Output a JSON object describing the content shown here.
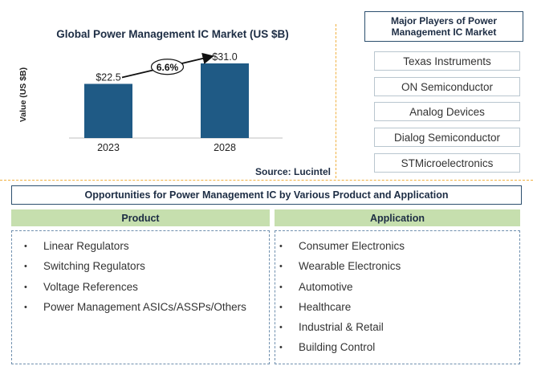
{
  "chart_data": {
    "type": "bar",
    "title": "Global Power Management IC Market (US $B)",
    "ylabel": "Value (US $B)",
    "xlabel": "",
    "categories": [
      "2023",
      "2028"
    ],
    "values": [
      22.5,
      31.0
    ],
    "value_labels": [
      "$22.5",
      "$31.0"
    ],
    "annotation": "6.6%",
    "ylim": [
      0,
      40
    ],
    "grid": false,
    "bar_color": "#1f5a85"
  },
  "source": "Source: Lucintel",
  "players": {
    "title": "Major Players of Power Management IC Market",
    "items": [
      "Texas Instruments",
      "ON Semiconductor",
      "Analog Devices",
      "Dialog Semiconductor",
      "STMicroelectronics"
    ]
  },
  "opportunities": {
    "title": "Opportunities for Power Management IC by Various Product and Application",
    "product": {
      "title": "Product",
      "items": [
        "Linear Regulators",
        "Switching Regulators",
        "Voltage References",
        "Power Management ASICs/ASSPs/Others"
      ]
    },
    "application": {
      "title": "Application",
      "items": [
        "Consumer Electronics",
        "Wearable Electronics",
        "Automotive",
        "Healthcare",
        "Industrial & Retail",
        "Building Control"
      ]
    }
  },
  "colors": {
    "header_green": "#c6dfae",
    "navy": "#1d2d44",
    "separator": "#f0b040"
  }
}
